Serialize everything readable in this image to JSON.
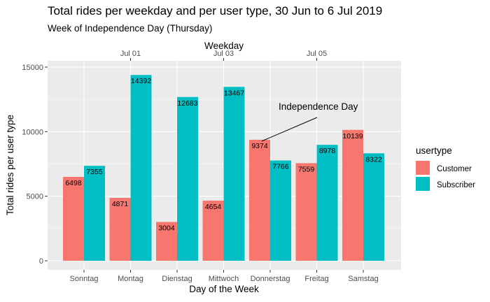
{
  "chart_data": {
    "type": "bar",
    "title": "Total rides per weekday and per user type, 30 Jun to 6 Jul 2019",
    "subtitle": "Week of Independence Day (Thursday)",
    "xlabel": "Day of the Week",
    "ylabel": "Total rides per user type",
    "top_axis_title": "Weekday",
    "top_axis_ticks": [
      {
        "label": "Jul 01",
        "category": "Montag"
      },
      {
        "label": "Jul 03",
        "category": "Mittwoch"
      },
      {
        "label": "Jul 05",
        "category": "Freitag"
      }
    ],
    "categories": [
      "Sonntag",
      "Montag",
      "Dienstag",
      "Mittwoch",
      "Donnerstag",
      "Freitag",
      "Samstag"
    ],
    "series": [
      {
        "name": "Customer",
        "color": "#F8766D",
        "values": [
          6498,
          4871,
          3004,
          4654,
          9374,
          7559,
          10139
        ]
      },
      {
        "name": "Subscriber",
        "color": "#00BFC4",
        "values": [
          7355,
          14392,
          12683,
          13467,
          7766,
          8978,
          8322
        ]
      }
    ],
    "ylim": [
      0,
      15000
    ],
    "yticks": [
      0,
      5000,
      10000,
      15000
    ],
    "yticks_labels": [
      "0",
      "5000",
      "10000",
      "15000"
    ],
    "legend": {
      "title": "usertype",
      "position": "right"
    },
    "annotation": {
      "text": "Independence Day",
      "category": "Donnerstag",
      "series": "Customer"
    },
    "grid": true,
    "panel_background": "#EBEBEB"
  }
}
